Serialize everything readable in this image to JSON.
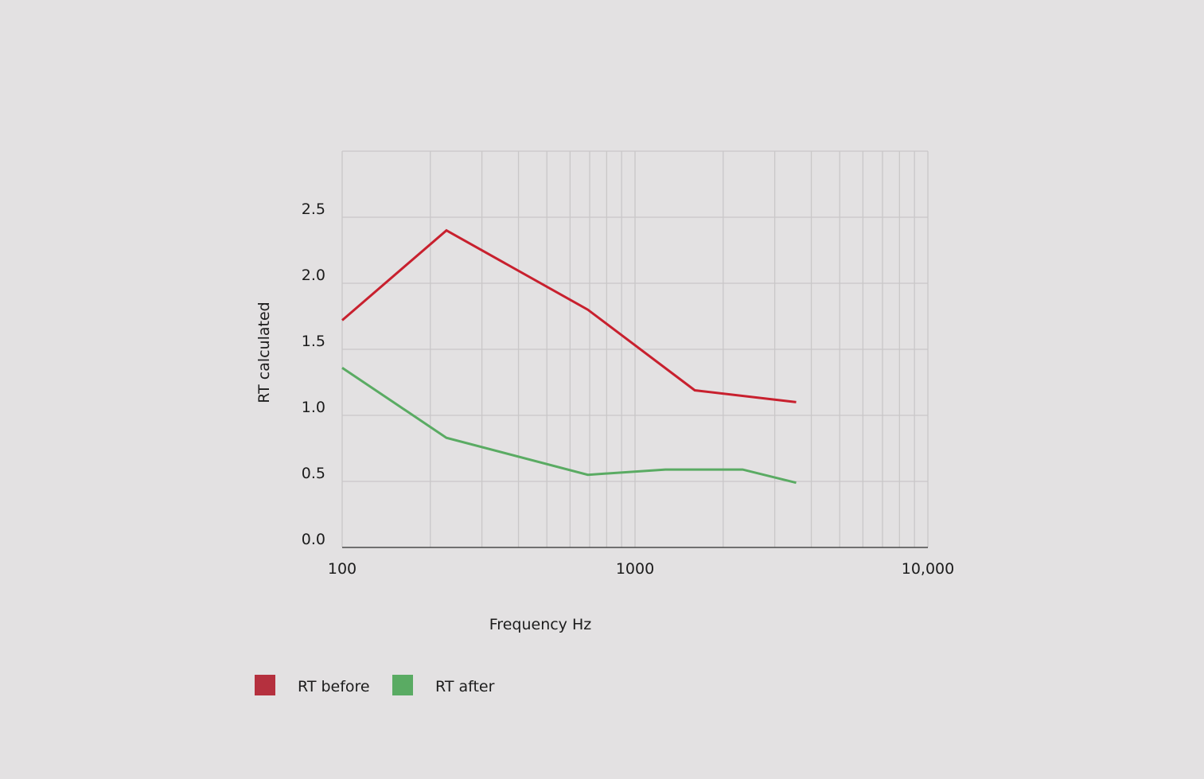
{
  "chart_data": {
    "type": "line",
    "title": "",
    "xlabel": "Frequency Hz",
    "ylabel": "RT calculated",
    "x_scale": "log",
    "xlim": [
      100,
      10000
    ],
    "ylim": [
      0,
      3.0
    ],
    "x_ticks": [
      {
        "value": 100,
        "label": "100"
      },
      {
        "value": 1000,
        "label": "1000"
      },
      {
        "value": 10000,
        "label": "10,000"
      }
    ],
    "y_ticks": [
      {
        "value": 0,
        "label": "0.0"
      },
      {
        "value": 0.5,
        "label": "0.5"
      },
      {
        "value": 1.0,
        "label": "1.0"
      },
      {
        "value": 1.5,
        "label": "1.5"
      },
      {
        "value": 2.0,
        "label": "2.0"
      },
      {
        "value": 2.5,
        "label": "2.5"
      }
    ],
    "grid": true,
    "legend_position": "bottom-left",
    "series": [
      {
        "name": "RT before",
        "color": "#c8202e",
        "legend_color": "#b5303e",
        "x": [
          100,
          227,
          690,
          1600,
          3550
        ],
        "values": [
          1.72,
          2.4,
          1.8,
          1.19,
          1.1
        ]
      },
      {
        "name": "RT after",
        "color": "#5aab63",
        "legend_color": "#5aab63",
        "x": [
          100,
          227,
          690,
          1270,
          2330,
          3550
        ],
        "values": [
          1.36,
          0.83,
          0.55,
          0.59,
          0.59,
          0.49
        ]
      }
    ]
  }
}
